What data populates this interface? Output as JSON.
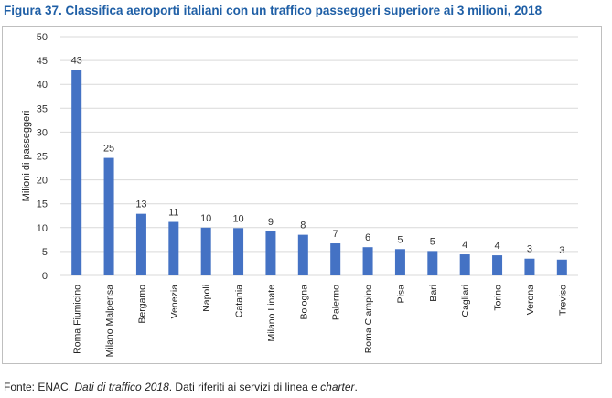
{
  "figure": {
    "title": "Figura 37.  Classifica aeroporti italiani con un traffico passeggeri superiore ai 3 milioni, 2018"
  },
  "source": {
    "prefix": "Fonte: ENAC, ",
    "italic1": "Dati di traffico 2018",
    "middle": ". Dati riferiti ai servizi di linea e ",
    "italic2": "charter",
    "suffix": "."
  },
  "chart_data": {
    "type": "bar",
    "categories": [
      "Roma Fiumicino",
      "Milano Malpensa",
      "Bergamo",
      "Venezia",
      "Napoli",
      "Catania",
      "Milano Linate",
      "Bologna",
      "Palermo",
      "Roma Ciampino",
      "Pisa",
      "Bari",
      "Cagliari",
      "Torino",
      "Verona",
      "Treviso"
    ],
    "values": [
      43,
      25,
      13,
      11,
      10,
      10,
      9,
      8,
      7,
      6,
      5,
      5,
      4,
      4,
      3,
      3
    ],
    "bar_heights": [
      43,
      24.6,
      12.9,
      11.2,
      10,
      9.9,
      9.2,
      8.5,
      6.7,
      5.9,
      5.5,
      5.1,
      4.4,
      4.2,
      3.5,
      3.3
    ],
    "ylabel": "Milioni di passeggeri",
    "yticks": [
      0,
      5,
      10,
      15,
      20,
      25,
      30,
      35,
      40,
      45,
      50
    ],
    "ylim": [
      0,
      50
    ],
    "grid": true,
    "bar_color": "#4472c4"
  }
}
